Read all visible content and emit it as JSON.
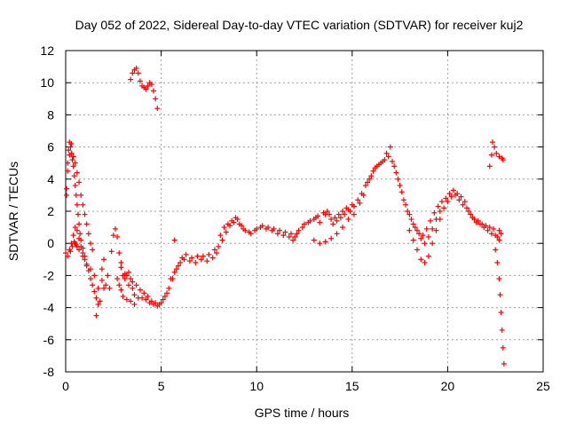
{
  "chart_data": {
    "type": "scatter",
    "title": "Day 052 of 2022, Sidereal Day-to-day VTEC variation (SDTVAR) for receiver kuj2",
    "xlabel": "GPS time / hours",
    "ylabel": "SDTVAR / TECUs",
    "xlim": [
      0,
      25
    ],
    "ylim": [
      -8,
      12
    ],
    "xticks": [
      0,
      5,
      10,
      15,
      20,
      25
    ],
    "yticks": [
      -8,
      -6,
      -4,
      -2,
      0,
      2,
      4,
      6,
      8,
      10,
      12
    ],
    "grid": true,
    "marker": "+",
    "color": "#ff0000",
    "series": [
      {
        "name": "SDTVAR",
        "points": [
          [
            0.0,
            -0.6
          ],
          [
            0.05,
            3.0
          ],
          [
            0.1,
            4.5
          ],
          [
            0.15,
            5.8
          ],
          [
            0.2,
            6.3
          ],
          [
            0.25,
            6.0
          ],
          [
            0.3,
            5.6
          ],
          [
            0.35,
            5.2
          ],
          [
            0.4,
            4.8
          ],
          [
            0.45,
            4.2
          ],
          [
            0.5,
            3.6
          ],
          [
            0.55,
            3.0
          ],
          [
            0.6,
            2.4
          ],
          [
            0.65,
            1.8
          ],
          [
            0.7,
            1.2
          ],
          [
            0.75,
            0.6
          ],
          [
            0.8,
            0.2
          ],
          [
            0.9,
            -0.3
          ],
          [
            1.0,
            -0.8
          ],
          [
            1.1,
            -1.3
          ],
          [
            1.2,
            -1.7
          ],
          [
            1.3,
            -2.2
          ],
          [
            1.4,
            -2.6
          ],
          [
            1.5,
            -3.0
          ],
          [
            1.6,
            -3.4
          ],
          [
            1.7,
            -3.8
          ],
          [
            1.8,
            -3.6
          ],
          [
            2.0,
            -2.8
          ],
          [
            2.2,
            -2.0
          ],
          [
            2.4,
            -0.5
          ],
          [
            2.5,
            0.5
          ],
          [
            2.6,
            0.9
          ],
          [
            2.7,
            0.4
          ],
          [
            2.8,
            -0.6
          ],
          [
            2.9,
            -1.5
          ],
          [
            3.0,
            -2.0
          ],
          [
            3.1,
            -2.2
          ],
          [
            3.2,
            -2.0
          ],
          [
            3.3,
            -1.8
          ],
          [
            3.4,
            -2.2
          ],
          [
            3.5,
            -2.8
          ],
          [
            3.6,
            -3.2
          ],
          [
            3.8,
            -3.4
          ],
          [
            4.0,
            -3.4
          ],
          [
            4.2,
            -3.5
          ],
          [
            4.4,
            -3.7
          ],
          [
            4.6,
            -3.8
          ],
          [
            4.8,
            -3.9
          ],
          [
            5.0,
            -3.7
          ],
          [
            5.2,
            -3.3
          ],
          [
            5.4,
            -2.8
          ],
          [
            5.6,
            -2.2
          ],
          [
            5.8,
            -1.6
          ],
          [
            6.0,
            -1.2
          ],
          [
            6.2,
            -1.0
          ],
          [
            6.5,
            -1.1
          ],
          [
            6.8,
            -1.2
          ],
          [
            7.1,
            -1.0
          ],
          [
            7.4,
            -1.1
          ],
          [
            7.7,
            -0.9
          ],
          [
            7.9,
            -0.6
          ],
          [
            8.1,
            0.5
          ],
          [
            8.3,
            1.0
          ],
          [
            8.5,
            1.2
          ],
          [
            8.7,
            1.4
          ],
          [
            8.9,
            1.6
          ],
          [
            9.1,
            1.2
          ],
          [
            9.3,
            0.9
          ],
          [
            9.6,
            0.7
          ],
          [
            9.9,
            0.8
          ],
          [
            10.2,
            1.0
          ],
          [
            10.5,
            0.9
          ],
          [
            10.8,
            0.8
          ],
          [
            11.1,
            0.6
          ],
          [
            11.4,
            0.5
          ],
          [
            11.7,
            0.4
          ],
          [
            11.9,
            0.2
          ],
          [
            12.1,
            0.6
          ],
          [
            12.4,
            1.0
          ],
          [
            12.7,
            1.3
          ],
          [
            13.0,
            1.5
          ],
          [
            13.2,
            1.7
          ],
          [
            13.5,
            1.9
          ],
          [
            13.7,
            2.0
          ],
          [
            13.9,
            1.5
          ],
          [
            14.1,
            1.6
          ],
          [
            14.3,
            1.8
          ],
          [
            14.5,
            2.0
          ],
          [
            14.7,
            2.2
          ],
          [
            14.9,
            2.0
          ],
          [
            15.1,
            2.3
          ],
          [
            15.3,
            2.7
          ],
          [
            15.5,
            3.1
          ],
          [
            15.7,
            3.6
          ],
          [
            15.9,
            4.0
          ],
          [
            16.1,
            4.5
          ],
          [
            16.3,
            4.8
          ],
          [
            16.5,
            5.0
          ],
          [
            16.7,
            5.2
          ],
          [
            16.9,
            5.4
          ],
          [
            17.1,
            5.1
          ],
          [
            17.3,
            4.4
          ],
          [
            17.5,
            3.6
          ],
          [
            17.7,
            2.7
          ],
          [
            17.9,
            2.0
          ],
          [
            18.1,
            1.5
          ],
          [
            18.3,
            1.0
          ],
          [
            18.5,
            0.6
          ],
          [
            18.7,
            0.5
          ],
          [
            18.9,
            0.9
          ],
          [
            19.1,
            1.4
          ],
          [
            19.3,
            1.9
          ],
          [
            19.5,
            2.3
          ],
          [
            19.7,
            2.6
          ],
          [
            19.9,
            2.8
          ],
          [
            20.1,
            3.1
          ],
          [
            20.3,
            3.3
          ],
          [
            20.5,
            3.1
          ],
          [
            20.7,
            2.9
          ],
          [
            20.9,
            2.6
          ],
          [
            21.1,
            2.0
          ],
          [
            21.3,
            1.6
          ],
          [
            21.5,
            1.3
          ],
          [
            21.7,
            1.2
          ],
          [
            21.9,
            1.0
          ],
          [
            22.1,
            0.8
          ],
          [
            22.3,
            0.6
          ],
          [
            22.5,
            0.5
          ],
          [
            22.7,
            0.8
          ],
          [
            22.8,
            0.6
          ],
          [
            0.2,
            -0.4
          ],
          [
            0.3,
            0.0
          ],
          [
            0.4,
            0.5
          ],
          [
            0.5,
            1.0
          ],
          [
            0.6,
            0.8
          ],
          [
            0.7,
            0.3
          ],
          [
            0.8,
            -0.2
          ],
          [
            0.9,
            -0.6
          ],
          [
            1.0,
            -1.0
          ],
          [
            1.1,
            -1.4
          ],
          [
            0.5,
            0.0
          ],
          [
            0.6,
            -0.2
          ],
          [
            0.7,
            -0.4
          ],
          [
            0.9,
            -0.8
          ],
          [
            1.3,
            -1.6
          ],
          [
            1.5,
            -2.0
          ],
          [
            1.7,
            -2.8
          ],
          [
            1.6,
            -4.5
          ],
          [
            1.9,
            -2.3
          ],
          [
            2.1,
            -2.6
          ],
          [
            0.1,
            -0.8
          ],
          [
            0.25,
            -0.5
          ],
          [
            0.35,
            -0.2
          ],
          [
            0.45,
            0.1
          ],
          [
            0.55,
            -0.1
          ],
          [
            0.05,
            3.4
          ],
          [
            0.1,
            5.0
          ],
          [
            0.2,
            5.5
          ],
          [
            0.3,
            6.2
          ],
          [
            0.4,
            5.4
          ],
          [
            0.5,
            5.0
          ],
          [
            0.6,
            4.4
          ],
          [
            0.7,
            3.8
          ],
          [
            0.8,
            3.0
          ],
          [
            0.9,
            2.4
          ],
          [
            1.0,
            1.8
          ],
          [
            1.1,
            1.2
          ],
          [
            1.2,
            0.6
          ],
          [
            1.3,
            0.0
          ],
          [
            1.4,
            -0.4
          ],
          [
            2.7,
            -2.2
          ],
          [
            2.8,
            -2.6
          ],
          [
            2.9,
            -2.9
          ],
          [
            3.0,
            -3.3
          ],
          [
            3.2,
            -3.5
          ],
          [
            3.4,
            -3.6
          ],
          [
            3.6,
            -3.8
          ],
          [
            2.9,
            -1.2
          ],
          [
            3.1,
            -1.9
          ],
          [
            3.3,
            -2.6
          ],
          [
            3.5,
            -2.4
          ],
          [
            3.7,
            -2.6
          ],
          [
            3.9,
            -2.9
          ],
          [
            4.1,
            -3.1
          ],
          [
            4.3,
            -3.3
          ],
          [
            4.5,
            -3.6
          ],
          [
            4.7,
            -3.7
          ],
          [
            4.9,
            -3.8
          ],
          [
            5.1,
            -3.5
          ],
          [
            5.3,
            -3.1
          ],
          [
            5.5,
            -2.2
          ],
          [
            5.7,
            -1.8
          ],
          [
            5.9,
            -1.4
          ],
          [
            6.1,
            -0.9
          ],
          [
            6.3,
            -0.7
          ],
          [
            6.6,
            -0.9
          ],
          [
            6.9,
            -0.8
          ],
          [
            7.2,
            -0.8
          ],
          [
            7.5,
            -0.7
          ],
          [
            7.8,
            -0.4
          ],
          [
            8.0,
            -0.2
          ],
          [
            8.2,
            0.2
          ],
          [
            8.4,
            0.7
          ],
          [
            8.6,
            1.1
          ],
          [
            8.8,
            1.3
          ],
          [
            9.0,
            1.5
          ],
          [
            9.2,
            1.1
          ],
          [
            9.4,
            0.8
          ],
          [
            9.7,
            0.6
          ],
          [
            10.0,
            0.9
          ],
          [
            10.3,
            1.1
          ],
          [
            10.6,
            1.0
          ],
          [
            10.9,
            0.9
          ],
          [
            11.2,
            0.8
          ],
          [
            11.5,
            0.7
          ],
          [
            11.8,
            0.6
          ],
          [
            12.0,
            0.4
          ],
          [
            12.2,
            0.8
          ],
          [
            12.5,
            1.2
          ],
          [
            12.8,
            1.4
          ],
          [
            13.1,
            1.6
          ],
          [
            13.3,
            1.3
          ],
          [
            13.6,
            1.8
          ],
          [
            13.8,
            1.8
          ],
          [
            14.0,
            1.2
          ],
          [
            14.2,
            1.4
          ],
          [
            14.4,
            1.6
          ],
          [
            14.6,
            1.8
          ],
          [
            14.8,
            2.1
          ],
          [
            15.0,
            2.4
          ],
          [
            13.0,
            0.2
          ],
          [
            13.3,
            0.0
          ],
          [
            13.6,
            0.1
          ],
          [
            13.9,
            0.3
          ],
          [
            14.2,
            0.6
          ],
          [
            14.5,
            1.0
          ],
          [
            14.8,
            1.5
          ],
          [
            15.1,
            1.8
          ],
          [
            15.4,
            2.5
          ],
          [
            15.6,
            3.0
          ],
          [
            15.8,
            3.8
          ],
          [
            16.0,
            4.2
          ],
          [
            16.2,
            4.7
          ],
          [
            16.4,
            4.9
          ],
          [
            16.6,
            5.1
          ],
          [
            16.8,
            5.6
          ],
          [
            17.0,
            6.0
          ],
          [
            17.2,
            4.8
          ],
          [
            17.4,
            4.0
          ],
          [
            17.6,
            3.2
          ],
          [
            17.8,
            2.4
          ],
          [
            18.0,
            1.8
          ],
          [
            18.2,
            1.2
          ],
          [
            18.4,
            0.8
          ],
          [
            18.6,
            0.3
          ],
          [
            18.8,
            0.0
          ],
          [
            19.0,
            0.4
          ],
          [
            19.2,
            0.9
          ],
          [
            19.4,
            1.5
          ],
          [
            19.6,
            2.0
          ],
          [
            18.0,
            0.8
          ],
          [
            18.2,
            0.2
          ],
          [
            18.4,
            -0.4
          ],
          [
            18.6,
            -1.0
          ],
          [
            18.8,
            -1.2
          ],
          [
            19.0,
            -0.8
          ],
          [
            19.2,
            0.0
          ],
          [
            19.4,
            0.8
          ],
          [
            19.6,
            1.5
          ],
          [
            19.8,
            2.2
          ],
          [
            20.0,
            2.6
          ],
          [
            20.2,
            2.9
          ],
          [
            20.4,
            3.0
          ],
          [
            20.6,
            2.7
          ],
          [
            20.8,
            2.4
          ],
          [
            21.0,
            2.2
          ],
          [
            21.2,
            1.8
          ],
          [
            21.4,
            1.5
          ],
          [
            21.6,
            1.4
          ],
          [
            21.8,
            1.2
          ],
          [
            22.0,
            1.1
          ],
          [
            22.2,
            1.0
          ],
          [
            22.4,
            0.9
          ],
          [
            22.6,
            0.4
          ],
          [
            22.7,
            0.2
          ],
          [
            22.5,
            -0.4
          ],
          [
            22.6,
            -1.2
          ],
          [
            22.7,
            -2.2
          ],
          [
            22.75,
            -3.2
          ],
          [
            22.8,
            -4.3
          ],
          [
            22.85,
            -5.4
          ],
          [
            22.9,
            -6.5
          ],
          [
            22.95,
            -7.5
          ],
          [
            3.4,
            10.2
          ],
          [
            3.5,
            10.6
          ],
          [
            3.6,
            10.8
          ],
          [
            3.7,
            10.9
          ],
          [
            3.8,
            10.6
          ],
          [
            3.9,
            10.1
          ],
          [
            4.0,
            9.8
          ],
          [
            4.1,
            9.7
          ],
          [
            4.2,
            9.6
          ],
          [
            4.3,
            9.8
          ],
          [
            4.4,
            10.0
          ],
          [
            4.5,
            9.9
          ],
          [
            4.6,
            9.5
          ],
          [
            4.7,
            9.0
          ],
          [
            4.8,
            8.4
          ],
          [
            22.2,
            4.8
          ],
          [
            22.3,
            5.5
          ],
          [
            22.35,
            6.3
          ],
          [
            22.45,
            6.0
          ],
          [
            22.55,
            5.6
          ],
          [
            22.7,
            5.4
          ],
          [
            22.85,
            5.3
          ],
          [
            22.9,
            5.2
          ],
          [
            5.7,
            0.2
          ],
          [
            2.3,
            -2.8
          ],
          [
            1.9,
            -1.6
          ],
          [
            2.0,
            -1.0
          ]
        ]
      }
    ]
  }
}
